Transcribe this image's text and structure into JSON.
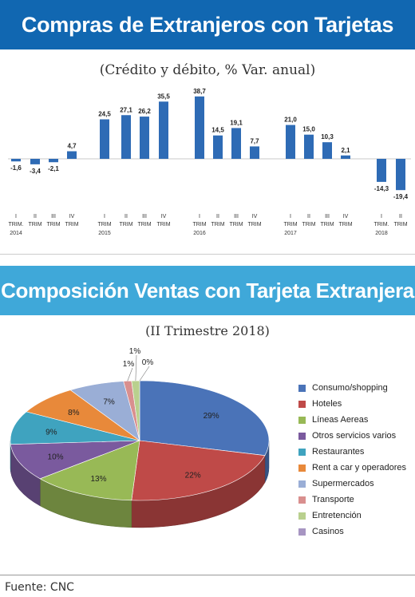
{
  "header": {
    "banner1_title": "Compras de Extranjeros con Tarjetas",
    "banner1_subtitle": "(Crédito y débito, % Var. anual)",
    "banner2_title": "Composición Ventas con Tarjeta Extranjera",
    "banner2_subtitle": "(II Trimestre 2018)"
  },
  "footer": {
    "source": "Fuente: CNC"
  },
  "chart_data": [
    {
      "type": "bar",
      "title": "Compras de Extranjeros con Tarjetas",
      "subtitle": "(Crédito y débito, % Var. anual)",
      "color": "#2e6bb5",
      "categories": [
        {
          "q": "I",
          "t": "TRIM.",
          "year": "2014"
        },
        {
          "q": "II",
          "t": "TRIM",
          "year": ""
        },
        {
          "q": "III",
          "t": "TRIM",
          "year": ""
        },
        {
          "q": "IV",
          "t": "TRIM",
          "year": ""
        },
        {
          "q": "I",
          "t": "TRIM",
          "year": "2015"
        },
        {
          "q": "II",
          "t": "TRIM",
          "year": ""
        },
        {
          "q": "III",
          "t": "TRIM",
          "year": ""
        },
        {
          "q": "IV",
          "t": "TRIM",
          "year": ""
        },
        {
          "q": "I",
          "t": "TRIM",
          "year": "2016"
        },
        {
          "q": "II",
          "t": "TRIM",
          "year": ""
        },
        {
          "q": "III",
          "t": "TRIM",
          "year": ""
        },
        {
          "q": "IV",
          "t": "TRIM",
          "year": ""
        },
        {
          "q": "I",
          "t": "TRIM",
          "year": "2017"
        },
        {
          "q": "II",
          "t": "TRIM",
          "year": ""
        },
        {
          "q": "III",
          "t": "TRIM",
          "year": ""
        },
        {
          "q": "IV",
          "t": "TRIM",
          "year": ""
        },
        {
          "q": "I",
          "t": "TRIM.",
          "year": "2018"
        },
        {
          "q": "II",
          "t": "TRIM",
          "year": ""
        }
      ],
      "values": [
        -1.6,
        -3.4,
        -2.1,
        4.7,
        24.5,
        27.1,
        26.2,
        35.5,
        38.7,
        14.5,
        19.1,
        7.7,
        21.0,
        15.0,
        10.3,
        2.1,
        -14.3,
        -19.4
      ],
      "labels": [
        "-1,6",
        "-3,4",
        "-2,1",
        "4,7",
        "24,5",
        "27,1",
        "26,2",
        "35,5",
        "38,7",
        "14,5",
        "19,1",
        "7,7",
        "21,0",
        "15,0",
        "10,3",
        "2,1",
        "-14,3",
        "-19,4"
      ],
      "grid": false
    },
    {
      "type": "pie",
      "title": "Composición Ventas con Tarjeta Extranjera",
      "subtitle": "(II Trimestre 2018)",
      "legend_position": "right",
      "slices": [
        {
          "name": "Consumo/shopping",
          "value": 29,
          "label": "29%",
          "color": "#4a73b8"
        },
        {
          "name": "Hoteles",
          "value": 22,
          "label": "22%",
          "color": "#bf4a48"
        },
        {
          "name": "Líneas Aereas",
          "value": 13,
          "label": "13%",
          "color": "#98b956"
        },
        {
          "name": "Otros servicios varios",
          "value": 10,
          "label": "10%",
          "color": "#7a5a9e"
        },
        {
          "name": "Restaurantes",
          "value": 9,
          "label": "9%",
          "color": "#3fa3bf"
        },
        {
          "name": "Rent a car y operadores",
          "value": 8,
          "label": "8%",
          "color": "#e8893a"
        },
        {
          "name": "Supermercados",
          "value": 7,
          "label": "7%",
          "color": "#9aaed6"
        },
        {
          "name": "Transporte",
          "value": 1,
          "label": "1%",
          "color": "#d98f8e"
        },
        {
          "name": "Entretención",
          "value": 1,
          "label": "1%",
          "color": "#b9d08e"
        },
        {
          "name": "Casinos",
          "value": 0,
          "label": "0%",
          "color": "#a795c2"
        }
      ]
    }
  ]
}
